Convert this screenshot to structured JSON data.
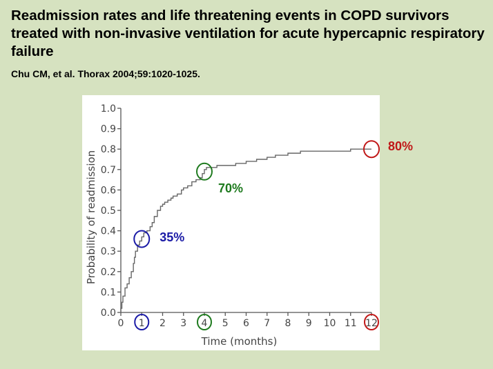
{
  "slide": {
    "title": "Readmission rates and life threatening events in COPD survivors treated with non-invasive ventilation for acute hypercapnic respiratory failure",
    "citation": "Chu CM, et al. Thorax 2004;59:1020-1025."
  },
  "chart_data": {
    "type": "line",
    "step": true,
    "xlabel": "Time (months)",
    "ylabel": "Probability of readmission",
    "xlim": [
      0,
      12
    ],
    "ylim": [
      0,
      1.0
    ],
    "x_ticks": [
      "0",
      "1",
      "2",
      "3",
      "4",
      "5",
      "6",
      "7",
      "8",
      "9",
      "10",
      "11",
      "12"
    ],
    "y_ticks": [
      "0.0",
      "0.1",
      "0.2",
      "0.3",
      "0.4",
      "0.5",
      "0.6",
      "0.7",
      "0.8",
      "0.9",
      "1.0"
    ],
    "grid": false,
    "series": [
      {
        "color": "#666666",
        "x": [
          0,
          0.05,
          0.1,
          0.2,
          0.3,
          0.4,
          0.5,
          0.6,
          0.65,
          0.7,
          0.8,
          0.9,
          1.0,
          1.1,
          1.25,
          1.4,
          1.5,
          1.6,
          1.75,
          1.9,
          2.0,
          2.1,
          2.25,
          2.4,
          2.5,
          2.7,
          2.9,
          3.0,
          3.2,
          3.4,
          3.6,
          3.8,
          3.9,
          4.0,
          4.1,
          4.3,
          4.6,
          5.0,
          5.5,
          6.0,
          6.5,
          7.0,
          7.4,
          8.0,
          8.6,
          9.5,
          10.0,
          11.0,
          12.0
        ],
        "y": [
          0.02,
          0.05,
          0.08,
          0.12,
          0.14,
          0.17,
          0.2,
          0.24,
          0.27,
          0.3,
          0.33,
          0.35,
          0.37,
          0.39,
          0.4,
          0.42,
          0.44,
          0.47,
          0.5,
          0.52,
          0.53,
          0.54,
          0.55,
          0.56,
          0.57,
          0.58,
          0.6,
          0.61,
          0.62,
          0.64,
          0.65,
          0.66,
          0.68,
          0.7,
          0.71,
          0.71,
          0.72,
          0.72,
          0.73,
          0.74,
          0.75,
          0.76,
          0.77,
          0.78,
          0.79,
          0.79,
          0.79,
          0.8,
          0.8
        ]
      }
    ],
    "annotations": [
      {
        "label": "35%",
        "x": 1,
        "y": 0.36,
        "color": "#1a1aa6"
      },
      {
        "label": "70%",
        "x": 4,
        "y": 0.69,
        "color": "#1e7a1e"
      },
      {
        "label": "80%",
        "x": 12,
        "y": 0.8,
        "color": "#c01818"
      }
    ]
  }
}
